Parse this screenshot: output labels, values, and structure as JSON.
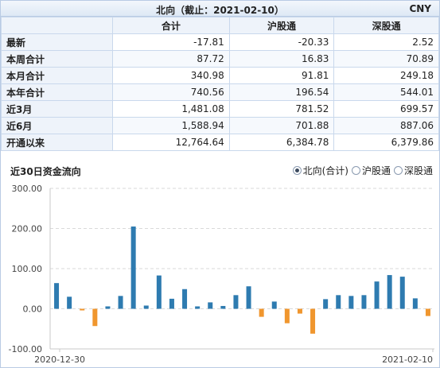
{
  "header": {
    "title": "北向（截止：2021-02-10）",
    "currency": "CNY"
  },
  "table": {
    "columns": [
      "",
      "合计",
      "沪股通",
      "深股通"
    ],
    "rows": [
      {
        "label": "最新",
        "values": [
          "-17.81",
          "-20.33",
          "2.52"
        ]
      },
      {
        "label": "本周合计",
        "values": [
          "87.72",
          "16.83",
          "70.89"
        ]
      },
      {
        "label": "本月合计",
        "values": [
          "340.98",
          "91.81",
          "249.18"
        ]
      },
      {
        "label": "本年合计",
        "values": [
          "740.56",
          "196.54",
          "544.01"
        ]
      },
      {
        "label": "近3月",
        "values": [
          "1,481.08",
          "781.52",
          "699.57"
        ]
      },
      {
        "label": "近6月",
        "values": [
          "1,588.94",
          "701.88",
          "887.06"
        ]
      },
      {
        "label": "开通以来",
        "values": [
          "12,764.64",
          "6,384.78",
          "6,379.86"
        ]
      }
    ]
  },
  "chart_section": {
    "title": "近30日资金流向",
    "radio_options": [
      {
        "label": "北向(合计)",
        "checked": true
      },
      {
        "label": "沪股通",
        "checked": false
      },
      {
        "label": "深股通",
        "checked": false
      }
    ]
  },
  "chart_data": {
    "type": "bar",
    "ylim": [
      -100,
      300
    ],
    "y_ticks": [
      "300.00",
      "200.00",
      "100.00",
      "0.00",
      "-100.00"
    ],
    "y_tick_values": [
      300,
      200,
      100,
      0,
      -100
    ],
    "x_tick_labels": [
      "2020-12-30",
      "2021-02-10"
    ],
    "positive_color": "#2e7bb0",
    "negative_color": "#f0962e",
    "values": [
      64,
      30,
      -4,
      -43,
      6,
      32,
      205,
      8,
      83,
      25,
      49,
      6,
      16,
      7,
      34,
      56,
      -20,
      18,
      -36,
      -12,
      -62,
      24,
      34,
      32,
      34,
      68,
      84,
      80,
      26,
      -18
    ]
  }
}
